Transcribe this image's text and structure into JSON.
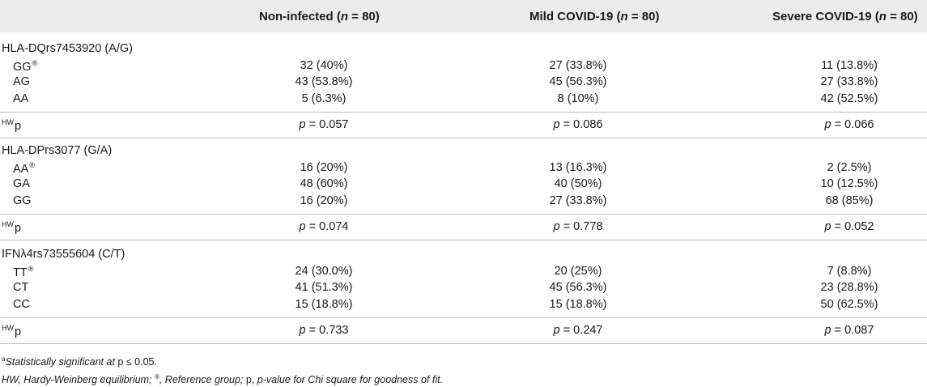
{
  "columns": {
    "c1_name": "Non-infected (",
    "c1_n": "n",
    "c1_tail": " = 80)",
    "c2_name": "Mild COVID-19 (",
    "c2_n": "n",
    "c2_tail": " = 80)",
    "c3_name": "Severe COVID-19 (",
    "c3_n": "n",
    "c3_tail": " = 80)"
  },
  "reference_mark": "®",
  "hw_label": {
    "sup": "HW",
    "base": "p"
  },
  "p_prefix": "p",
  "sections": [
    {
      "title": "HLA-DQrs7453920 (A/G)",
      "rows": [
        {
          "label": "GG",
          "ref": true,
          "values": [
            "32 (40%)",
            "27 (33.8%)",
            "11 (13.8%)"
          ]
        },
        {
          "label": "AG",
          "ref": false,
          "values": [
            "43 (53.8%)",
            "45 (56.3%)",
            "27 (33.8%)"
          ]
        },
        {
          "label": "AA",
          "ref": false,
          "values": [
            "5 (6.3%)",
            "8 (10%)",
            "42 (52.5%)"
          ]
        }
      ],
      "hw_values": [
        " = 0.057",
        " = 0.086",
        " = 0.066"
      ]
    },
    {
      "title": "HLA-DPrs3077 (G/A)",
      "rows": [
        {
          "label": "AA",
          "ref": true,
          "values": [
            "16 (20%)",
            "13 (16.3%)",
            "2 (2.5%)"
          ]
        },
        {
          "label": "GA",
          "ref": false,
          "values": [
            "48 (60%)",
            "40 (50%)",
            "10 (12.5%)"
          ]
        },
        {
          "label": "GG",
          "ref": false,
          "values": [
            "16 (20%)",
            "27 (33.8%)",
            "68 (85%)"
          ]
        }
      ],
      "hw_values": [
        " = 0.074",
        " = 0.778",
        " = 0.052"
      ]
    },
    {
      "title": "IFNλ4rs73555604 (C/T)",
      "rows": [
        {
          "label": "TT",
          "ref": true,
          "values": [
            "24 (30.0%)",
            "20 (25%)",
            "7 (8.8%)"
          ]
        },
        {
          "label": "CT",
          "ref": false,
          "values": [
            "41 (51.3%)",
            "45 (56.3%)",
            "23 (28.8%)"
          ]
        },
        {
          "label": "CC",
          "ref": false,
          "values": [
            "15 (18.8%)",
            "15 (18.8%)",
            "50 (62.5%)"
          ]
        }
      ],
      "hw_values": [
        " = 0.733",
        " = 0.247",
        " = 0.087"
      ]
    }
  ],
  "footnotes": {
    "a_sup": "a",
    "a_text": "Statistically significant at ",
    "a_cond": "p ≤ 0.05",
    "a_end": ".",
    "legend_1": "HW, Hardy-Weinberg equilibrium; ",
    "legend_mark": "®",
    "legend_2": ", Reference group; ",
    "legend_p": "p, ",
    "legend_3": "p-value for Chi square for goodness of fit."
  }
}
